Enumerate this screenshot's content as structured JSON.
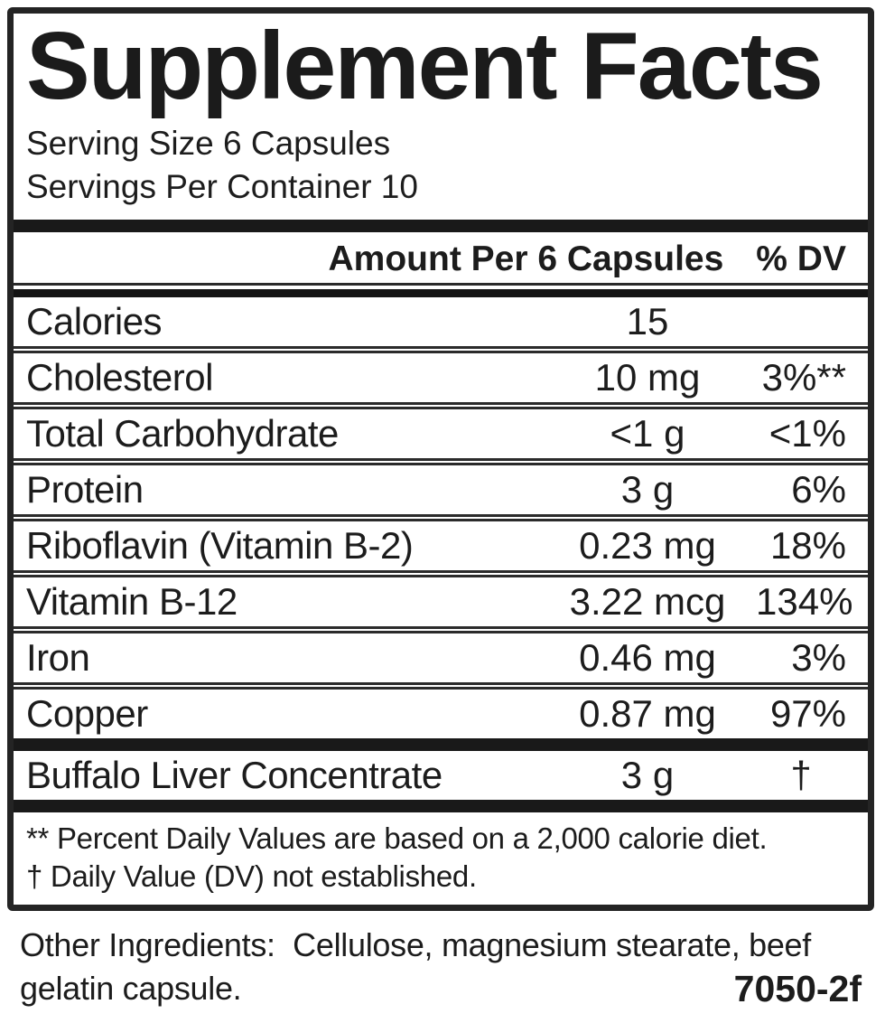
{
  "label": {
    "title": "Supplement Facts",
    "serving_size": "Serving Size 6 Capsules",
    "servings_per_container": "Servings Per Container 10",
    "columns": {
      "amount": "Amount Per 6 Capsules",
      "dv": "% DV"
    },
    "rows": [
      {
        "name": "Calories",
        "amount": "15",
        "dv": ""
      },
      {
        "name": "Cholesterol",
        "amount": "10 mg",
        "dv": "3%**"
      },
      {
        "name": "Total Carbohydrate",
        "amount": "<1 g",
        "dv": "<1%"
      },
      {
        "name": "Protein",
        "amount": "3 g",
        "dv": "6%"
      },
      {
        "name": "Riboflavin (Vitamin B-2)",
        "amount": "0.23 mg",
        "dv": "18%"
      },
      {
        "name": "Vitamin B-12",
        "amount": "3.22 mcg",
        "dv": "134%"
      },
      {
        "name": "Iron",
        "amount": "0.46 mg",
        "dv": "3%"
      },
      {
        "name": "Copper",
        "amount": "0.87 mg",
        "dv": "97%"
      }
    ],
    "special_rows": [
      {
        "name": "Buffalo Liver Concentrate",
        "amount": "3 g",
        "dv": "†"
      }
    ],
    "footnotes": [
      "** Percent Daily Values are based on a 2,000 calorie diet.",
      "† Daily Value (DV) not established."
    ],
    "other_ingredients": "Other Ingredients:  Cellulose, magnesium stearate, beef gelatin capsule.",
    "product_code": "7050-2f",
    "colors": {
      "ink": "#1c1c1c",
      "bar": "#191919",
      "background": "#ffffff"
    }
  }
}
